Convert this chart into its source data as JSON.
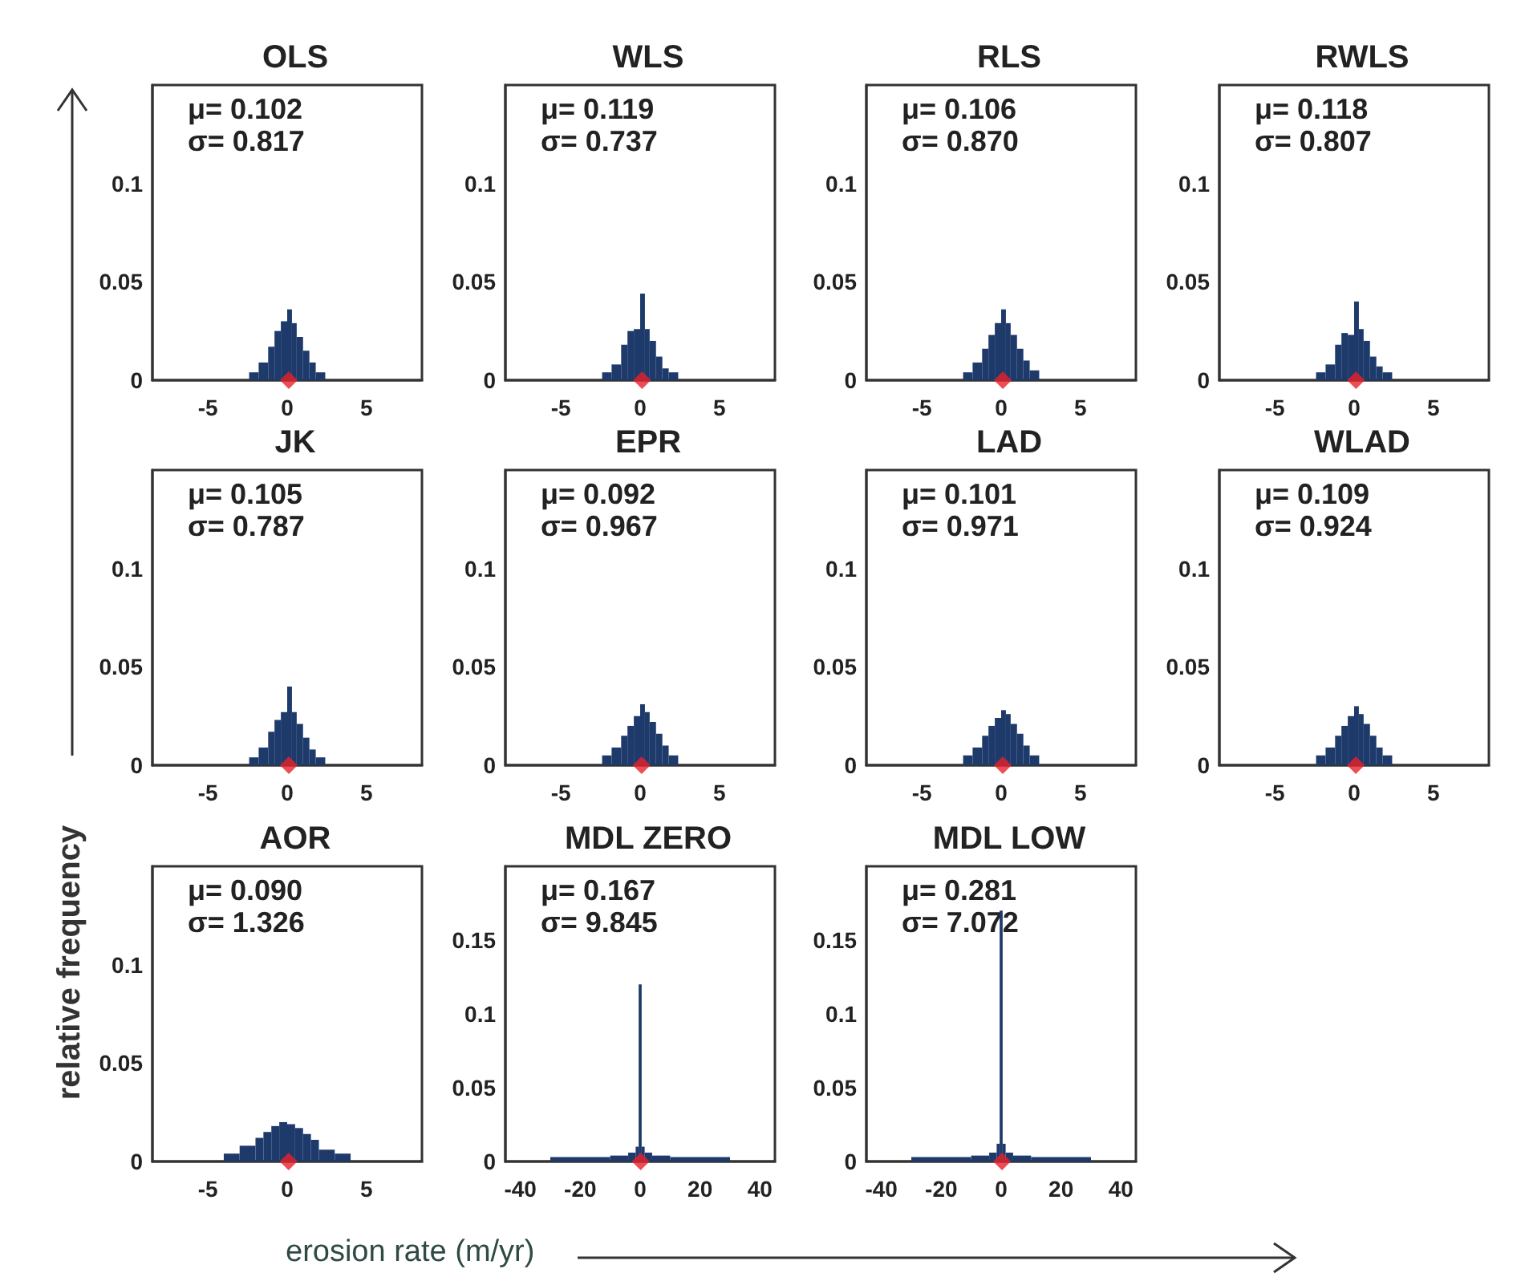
{
  "chart_data": [
    {
      "type": "histogram",
      "title": "OLS",
      "annotations": [
        "μ= 0.102",
        "σ= 0.817"
      ],
      "xlim": [
        -8.5,
        8.5
      ],
      "xticks": [
        -5,
        0,
        5
      ],
      "ylim": [
        0,
        0.15
      ],
      "yticks": [
        0,
        0.05,
        0.1
      ],
      "bins": [
        -2.4,
        -1.8,
        -1.2,
        -0.8,
        -0.4,
        0,
        0.3,
        0.6,
        1,
        1.4,
        1.8,
        2.4
      ],
      "series": [
        {
          "type": "histogram",
          "color": "#1e3a6b",
          "values": [
            0.004,
            0.009,
            0.017,
            0.025,
            0.03,
            0.036,
            0.029,
            0.022,
            0.015,
            0.009,
            0.004
          ]
        },
        {
          "type": "scatter",
          "color": "#e8202a",
          "marker": "diamond",
          "x": [
            0.102
          ],
          "values": [
            0
          ]
        }
      ]
    },
    {
      "type": "histogram",
      "title": "WLS",
      "annotations": [
        "μ= 0.119",
        "σ= 0.737"
      ],
      "xlim": [
        -8.5,
        8.5
      ],
      "xticks": [
        -5,
        0,
        5
      ],
      "ylim": [
        0,
        0.15
      ],
      "yticks": [
        0,
        0.05,
        0.1
      ],
      "bins": [
        -2.4,
        -1.8,
        -1.2,
        -0.8,
        -0.4,
        0,
        0.3,
        0.6,
        1,
        1.4,
        1.8,
        2.4
      ],
      "series": [
        {
          "type": "histogram",
          "color": "#1e3a6b",
          "values": [
            0.004,
            0.008,
            0.018,
            0.025,
            0.026,
            0.044,
            0.026,
            0.02,
            0.012,
            0.006,
            0.004
          ]
        },
        {
          "type": "scatter",
          "color": "#e8202a",
          "marker": "diamond",
          "x": [
            0.119
          ],
          "values": [
            0
          ]
        }
      ]
    },
    {
      "type": "histogram",
      "title": "RLS",
      "annotations": [
        "μ= 0.106",
        "σ= 0.870"
      ],
      "xlim": [
        -8.5,
        8.5
      ],
      "xticks": [
        -5,
        0,
        5
      ],
      "ylim": [
        0,
        0.15
      ],
      "yticks": [
        0,
        0.05,
        0.1
      ],
      "bins": [
        -2.4,
        -1.8,
        -1.2,
        -0.8,
        -0.4,
        0,
        0.3,
        0.6,
        1,
        1.4,
        1.8,
        2.4
      ],
      "series": [
        {
          "type": "histogram",
          "color": "#1e3a6b",
          "values": [
            0.004,
            0.009,
            0.016,
            0.023,
            0.029,
            0.036,
            0.029,
            0.023,
            0.016,
            0.01,
            0.005
          ]
        },
        {
          "type": "scatter",
          "color": "#e8202a",
          "marker": "diamond",
          "x": [
            0.106
          ],
          "values": [
            0
          ]
        }
      ]
    },
    {
      "type": "histogram",
      "title": "RWLS",
      "annotations": [
        "μ= 0.118",
        "σ= 0.807"
      ],
      "xlim": [
        -8.5,
        8.5
      ],
      "xticks": [
        -5,
        0,
        5
      ],
      "ylim": [
        0,
        0.15
      ],
      "yticks": [
        0,
        0.05,
        0.1
      ],
      "bins": [
        -2.4,
        -1.8,
        -1.2,
        -0.8,
        -0.4,
        0,
        0.3,
        0.6,
        1,
        1.4,
        1.8,
        2.4
      ],
      "series": [
        {
          "type": "histogram",
          "color": "#1e3a6b",
          "values": [
            0.004,
            0.008,
            0.018,
            0.024,
            0.023,
            0.04,
            0.026,
            0.02,
            0.012,
            0.007,
            0.004
          ]
        },
        {
          "type": "scatter",
          "color": "#e8202a",
          "marker": "diamond",
          "x": [
            0.118
          ],
          "values": [
            0
          ]
        }
      ]
    },
    {
      "type": "histogram",
      "title": "JK",
      "ylabel": "relative frequency",
      "annotations": [
        "μ= 0.105",
        "σ= 0.787"
      ],
      "xlim": [
        -8.5,
        8.5
      ],
      "xticks": [
        -5,
        0,
        5
      ],
      "ylim": [
        0,
        0.15
      ],
      "yticks": [
        0,
        0.05,
        0.1
      ],
      "bins": [
        -2.4,
        -1.8,
        -1.2,
        -0.8,
        -0.4,
        0,
        0.3,
        0.6,
        1,
        1.4,
        1.8,
        2.4
      ],
      "series": [
        {
          "type": "histogram",
          "color": "#1e3a6b",
          "values": [
            0.004,
            0.009,
            0.017,
            0.023,
            0.027,
            0.04,
            0.027,
            0.021,
            0.014,
            0.008,
            0.004
          ]
        },
        {
          "type": "scatter",
          "color": "#e8202a",
          "marker": "diamond",
          "x": [
            0.105
          ],
          "values": [
            0
          ]
        }
      ]
    },
    {
      "type": "histogram",
      "title": "EPR",
      "annotations": [
        "μ= 0.092",
        "σ= 0.967"
      ],
      "xlim": [
        -8.5,
        8.5
      ],
      "xticks": [
        -5,
        0,
        5
      ],
      "ylim": [
        0,
        0.15
      ],
      "yticks": [
        0,
        0.05,
        0.1
      ],
      "bins": [
        -2.4,
        -1.8,
        -1.2,
        -0.8,
        -0.4,
        0,
        0.3,
        0.6,
        1,
        1.4,
        1.8,
        2.4
      ],
      "series": [
        {
          "type": "histogram",
          "color": "#1e3a6b",
          "values": [
            0.005,
            0.009,
            0.015,
            0.02,
            0.025,
            0.031,
            0.027,
            0.022,
            0.016,
            0.01,
            0.005
          ]
        },
        {
          "type": "scatter",
          "color": "#e8202a",
          "marker": "diamond",
          "x": [
            0.092
          ],
          "values": [
            0
          ]
        }
      ]
    },
    {
      "type": "histogram",
      "title": "LAD",
      "annotations": [
        "μ= 0.101",
        "σ= 0.971"
      ],
      "xlim": [
        -8.5,
        8.5
      ],
      "xticks": [
        -5,
        0,
        5
      ],
      "ylim": [
        0,
        0.15
      ],
      "yticks": [
        0,
        0.05,
        0.1
      ],
      "bins": [
        -2.4,
        -1.8,
        -1.2,
        -0.8,
        -0.4,
        0,
        0.3,
        0.6,
        1,
        1.4,
        1.8,
        2.4
      ],
      "series": [
        {
          "type": "histogram",
          "color": "#1e3a6b",
          "values": [
            0.005,
            0.009,
            0.015,
            0.02,
            0.024,
            0.028,
            0.026,
            0.021,
            0.016,
            0.01,
            0.005
          ]
        },
        {
          "type": "scatter",
          "color": "#e8202a",
          "marker": "diamond",
          "x": [
            0.101
          ],
          "values": [
            0
          ]
        }
      ]
    },
    {
      "type": "histogram",
      "title": "WLAD",
      "annotations": [
        "μ= 0.109",
        "σ= 0.924"
      ],
      "xlim": [
        -8.5,
        8.5
      ],
      "xticks": [
        -5,
        0,
        5
      ],
      "ylim": [
        0,
        0.15
      ],
      "yticks": [
        0,
        0.05,
        0.1
      ],
      "bins": [
        -2.4,
        -1.8,
        -1.2,
        -0.8,
        -0.4,
        0,
        0.3,
        0.6,
        1,
        1.4,
        1.8,
        2.4
      ],
      "series": [
        {
          "type": "histogram",
          "color": "#1e3a6b",
          "values": [
            0.005,
            0.009,
            0.015,
            0.02,
            0.025,
            0.03,
            0.026,
            0.021,
            0.015,
            0.009,
            0.005
          ]
        },
        {
          "type": "scatter",
          "color": "#e8202a",
          "marker": "diamond",
          "x": [
            0.109
          ],
          "values": [
            0
          ]
        }
      ]
    },
    {
      "type": "histogram",
      "title": "AOR",
      "annotations": [
        "μ= 0.090",
        "σ= 1.326"
      ],
      "xlim": [
        -8.5,
        8.5
      ],
      "xticks": [
        -5,
        0,
        5
      ],
      "ylim": [
        0,
        0.15
      ],
      "yticks": [
        0,
        0.05,
        0.1
      ],
      "bins": [
        -4,
        -3,
        -2,
        -1.5,
        -1,
        -0.5,
        0,
        0.5,
        1,
        1.5,
        2,
        3,
        4
      ],
      "series": [
        {
          "type": "histogram",
          "color": "#1e3a6b",
          "values": [
            0.004,
            0.008,
            0.012,
            0.015,
            0.018,
            0.02,
            0.019,
            0.017,
            0.014,
            0.011,
            0.006,
            0.004
          ]
        },
        {
          "type": "scatter",
          "color": "#e8202a",
          "marker": "diamond",
          "x": [
            0.09
          ],
          "values": [
            0
          ]
        }
      ]
    },
    {
      "type": "histogram",
      "title": "MDL ZERO",
      "xlabel": "erosion rate (m/yr)",
      "annotations": [
        "μ= 0.167",
        "σ= 9.845"
      ],
      "xlim": [
        -45,
        45
      ],
      "xticks": [
        -40,
        -20,
        0,
        20,
        40
      ],
      "ylim": [
        0,
        0.2
      ],
      "yticks": [
        0,
        0.05,
        0.1,
        0.15
      ],
      "bins": [
        -30,
        -10,
        -4,
        -1.5,
        -0.5,
        0.5,
        1.5,
        4,
        10,
        30
      ],
      "series": [
        {
          "type": "histogram",
          "color": "#1e3a6b",
          "values": [
            0.003,
            0.004,
            0.006,
            0.01,
            0.12,
            0.01,
            0.006,
            0.004,
            0.003
          ]
        },
        {
          "type": "scatter",
          "color": "#e8202a",
          "marker": "diamond",
          "x": [
            0.167
          ],
          "values": [
            0
          ]
        }
      ]
    },
    {
      "type": "histogram",
      "title": "MDL LOW",
      "annotations": [
        "μ= 0.281",
        "σ= 7.072"
      ],
      "xlim": [
        -45,
        45
      ],
      "xticks": [
        -40,
        -20,
        0,
        20,
        40
      ],
      "ylim": [
        0,
        0.2
      ],
      "yticks": [
        0,
        0.05,
        0.1,
        0.15
      ],
      "bins": [
        -30,
        -10,
        -4,
        -1.5,
        -0.5,
        0.5,
        1.5,
        4,
        10,
        30
      ],
      "series": [
        {
          "type": "histogram",
          "color": "#1e3a6b",
          "values": [
            0.003,
            0.004,
            0.006,
            0.012,
            0.17,
            0.012,
            0.006,
            0.004,
            0.003
          ]
        },
        {
          "type": "scatter",
          "color": "#e8202a",
          "marker": "diamond",
          "x": [
            0.281
          ],
          "values": [
            0
          ]
        }
      ]
    }
  ]
}
